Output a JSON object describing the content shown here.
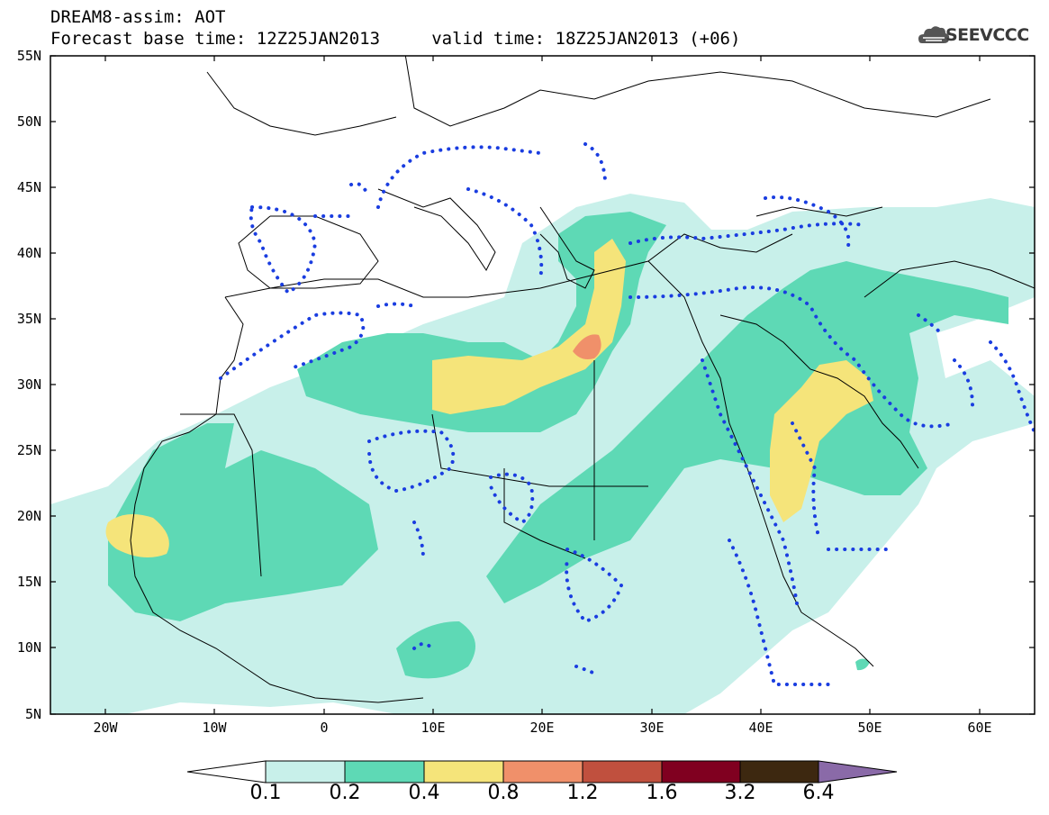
{
  "header": {
    "line1": "DREAM8-assim: AOT",
    "line2": "Forecast base time: 12Z25JAN2013     valid time: 18Z25JAN2013 (+06)"
  },
  "logo": {
    "text": "SEEVCCC",
    "icon": "cloud-icon"
  },
  "map": {
    "extent": {
      "lon": [
        -25,
        65
      ],
      "lat": [
        5,
        55
      ]
    },
    "lat_labels": [
      "55N",
      "50N",
      "45N",
      "40N",
      "35N",
      "30N",
      "25N",
      "20N",
      "15N",
      "10N",
      "5N"
    ],
    "lon_labels": [
      "20W",
      "10W",
      "0",
      "10E",
      "20E",
      "30E",
      "40E",
      "50E",
      "60E"
    ]
  },
  "colorbar": {
    "labels": [
      "0.1",
      "0.2",
      "0.4",
      "0.8",
      "1.2",
      "1.6",
      "3.2",
      "6.4"
    ],
    "colors": [
      "#ffffff",
      "#c8f0ea",
      "#5ed9b5",
      "#f5e47a",
      "#f0906a",
      "#c0503e",
      "#800020",
      "#3d2810",
      "#8a6aa8"
    ]
  },
  "colors": {
    "aot_0.1_0.2": "#c8f0ea",
    "aot_0.2_0.4": "#5ed9b5",
    "aot_0.4_0.8": "#f5e47a",
    "aot_0.8_1.2": "#f0906a",
    "dotted_contour": "#1a3de0",
    "coastline": "#000000"
  }
}
